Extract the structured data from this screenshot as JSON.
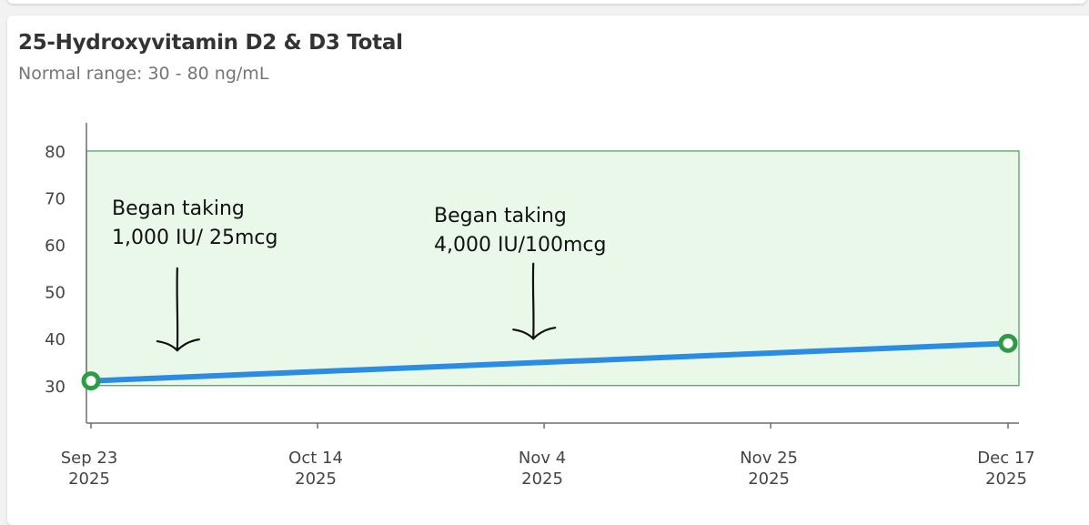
{
  "card": {
    "title": "25-Hydroxyvitamin D2 & D3 Total",
    "subtitle": "Normal range: 30 - 80 ng/mL"
  },
  "colors": {
    "line": "#2b8ce3",
    "point": "#2e9b48",
    "range_fill": "#eaf8ea",
    "range_border": "#3ea24f",
    "axis": "#6f6f6f",
    "tick_text": "#444444"
  },
  "chart_data": {
    "type": "line",
    "title": "25-Hydroxyvitamin D2 & D3 Total",
    "subtitle": "Normal range: 30 - 80 ng/mL",
    "ylim": [
      22,
      86
    ],
    "y_ticks": [
      30,
      40,
      50,
      60,
      70,
      80
    ],
    "normal_range": [
      30,
      80
    ],
    "xlim": [
      "2025-09-23",
      "2025-12-17"
    ],
    "x_ticks": [
      {
        "date": "2025-09-23",
        "line1": "Sep 23",
        "line2": "2025"
      },
      {
        "date": "2025-10-14",
        "line1": "Oct 14",
        "line2": "2025"
      },
      {
        "date": "2025-11-04",
        "line1": "Nov 4",
        "line2": "2025"
      },
      {
        "date": "2025-11-25",
        "line1": "Nov 25",
        "line2": "2025"
      },
      {
        "date": "2025-12-17",
        "line1": "Dec 17",
        "line2": "2025"
      }
    ],
    "series": [
      {
        "points": [
          {
            "x": "2025-09-23",
            "y": 31
          },
          {
            "x": "2025-12-17",
            "y": 39
          }
        ]
      }
    ],
    "annotations": [
      {
        "lines": [
          "Began taking",
          "1,000 IU/ 25mcg"
        ],
        "arrow_date": "2025-10-01",
        "arrow_top": 55,
        "arrow_bottom": 37.5
      },
      {
        "lines": [
          "Began taking",
          "4,000 IU/100mcg"
        ],
        "arrow_date": "2025-11-03",
        "arrow_top": 56,
        "arrow_bottom": 40
      }
    ]
  }
}
